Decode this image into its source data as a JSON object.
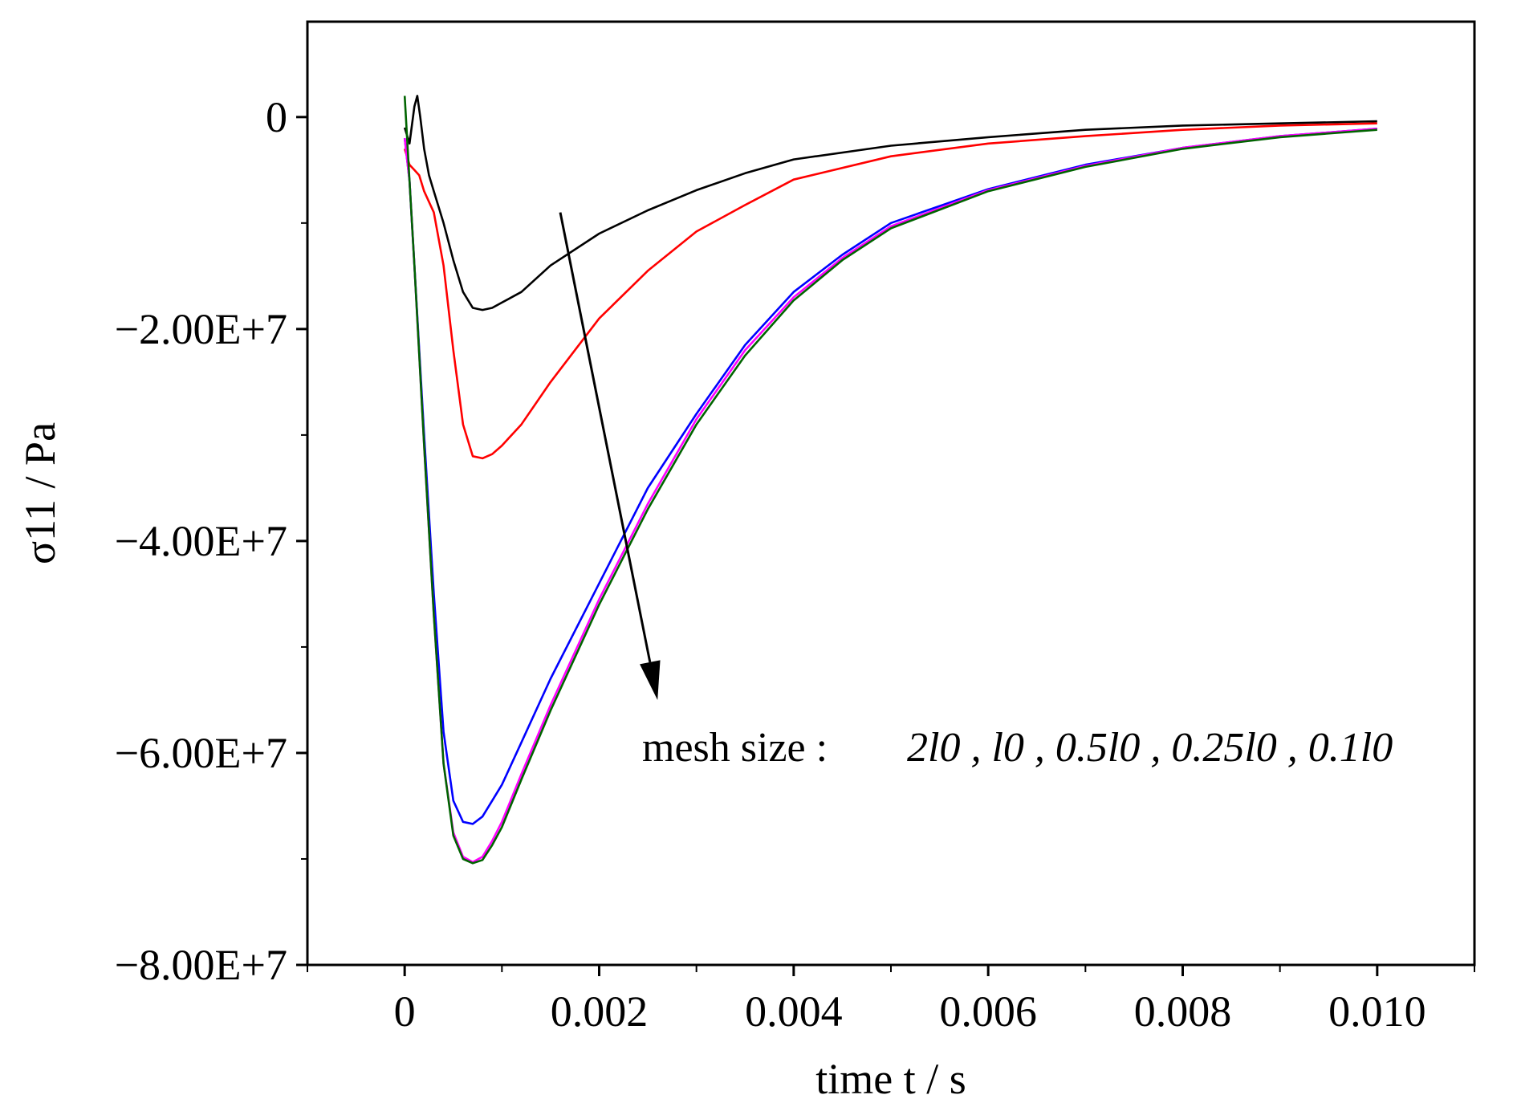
{
  "chart_data": {
    "type": "line",
    "xlabel": "time t / s",
    "ylabel": "σ11 / Pa",
    "xlim": [
      -0.001,
      0.011
    ],
    "ylim": [
      -80000000,
      9000000
    ],
    "x_ticks": [
      0,
      0.002,
      0.004,
      0.006,
      0.008,
      0.01
    ],
    "x_tick_labels": [
      "0",
      "0.002",
      "0.004",
      "0.006",
      "0.008",
      "0.010"
    ],
    "y_ticks": [
      0,
      -20000000,
      -40000000,
      -60000000,
      -80000000
    ],
    "y_tick_labels": [
      "0",
      "−2.00E+7",
      "−4.00E+7",
      "−6.00E+7",
      "−8.00E+7"
    ],
    "annotation": {
      "text_prefix": "mesh size :",
      "text_values": "2l0 , l0 , 0.5l0 , 0.25l0 , 0.1l0",
      "arrow_from": [
        0.0016,
        -9000000
      ],
      "arrow_to": [
        0.0026,
        -55000000
      ]
    },
    "series": [
      {
        "color": "#000000",
        "x": [
          0,
          5e-05,
          0.0001,
          0.00013,
          0.00016,
          0.0002,
          0.00025,
          0.0003,
          0.0004,
          0.0005,
          0.0006,
          0.0007,
          0.0008,
          0.0009,
          0.001,
          0.0012,
          0.0015,
          0.002,
          0.0025,
          0.003,
          0.0035,
          0.004,
          0.005,
          0.006,
          0.007,
          0.008,
          0.009,
          0.01
        ],
        "y": [
          -1000000,
          -2500000,
          1000000,
          2000000,
          0,
          -3000000,
          -5500000,
          -7000000,
          -10000000,
          -13500000,
          -16500000,
          -18000000,
          -18200000,
          -18000000,
          -17500000,
          -16500000,
          -14000000,
          -11000000,
          -8800000,
          -6900000,
          -5300000,
          -4000000,
          -2700000,
          -1900000,
          -1200000,
          -800000,
          -600000,
          -400000
        ]
      },
      {
        "color": "#ff0000",
        "x": [
          0,
          5e-05,
          0.0001,
          0.00015,
          0.0002,
          0.0003,
          0.0004,
          0.0005,
          0.0006,
          0.0007,
          0.0008,
          0.0009,
          0.001,
          0.0012,
          0.0015,
          0.002,
          0.0025,
          0.003,
          0.0035,
          0.004,
          0.005,
          0.006,
          0.007,
          0.008,
          0.009,
          0.01
        ],
        "y": [
          -3000000,
          -4500000,
          -5000000,
          -5500000,
          -7000000,
          -9000000,
          -14000000,
          -22000000,
          -29000000,
          -32000000,
          -32200000,
          -31800000,
          -31000000,
          -29000000,
          -25000000,
          -19000000,
          -14500000,
          -10800000,
          -8300000,
          -5900000,
          -3700000,
          -2500000,
          -1800000,
          -1200000,
          -800000,
          -600000
        ]
      },
      {
        "color": "#0000ff",
        "x": [
          0,
          5e-05,
          0.0001,
          0.0002,
          0.0003,
          0.0004,
          0.0005,
          0.0006,
          0.0007,
          0.0008,
          0.0009,
          0.001,
          0.0012,
          0.0015,
          0.002,
          0.0025,
          0.003,
          0.0035,
          0.004,
          0.0045,
          0.005,
          0.006,
          0.007,
          0.008,
          0.009,
          0.01
        ],
        "y": [
          -2000000,
          -6000000,
          -14000000,
          -30000000,
          -45000000,
          -58000000,
          -64500000,
          -66500000,
          -66700000,
          -66000000,
          -64500000,
          -63000000,
          -59000000,
          -53000000,
          -44000000,
          -35000000,
          -28000000,
          -21500000,
          -16500000,
          -13000000,
          -10000000,
          -6800000,
          -4500000,
          -2900000,
          -1800000,
          -1100000
        ]
      },
      {
        "color": "#ff00ff",
        "x": [
          0,
          5e-05,
          0.0001,
          0.0002,
          0.0003,
          0.0004,
          0.0005,
          0.0006,
          0.0007,
          0.0008,
          0.0009,
          0.001,
          0.0012,
          0.0015,
          0.002,
          0.0025,
          0.003,
          0.0035,
          0.004,
          0.0045,
          0.005,
          0.006,
          0.007,
          0.008,
          0.009,
          0.01
        ],
        "y": [
          -2000000,
          -6000000,
          -14000000,
          -31000000,
          -47000000,
          -61000000,
          -67500000,
          -69800000,
          -70300000,
          -69800000,
          -68300000,
          -66500000,
          -62000000,
          -55500000,
          -45500000,
          -36500000,
          -28500000,
          -22000000,
          -17000000,
          -13300000,
          -10300000,
          -6900000,
          -4600000,
          -2900000,
          -1800000,
          -1100000
        ]
      },
      {
        "color": "#006400",
        "x": [
          0,
          5e-05,
          0.0001,
          0.0002,
          0.0003,
          0.0004,
          0.0005,
          0.0006,
          0.0007,
          0.0008,
          0.0009,
          0.001,
          0.0012,
          0.0015,
          0.002,
          0.0025,
          0.003,
          0.0035,
          0.004,
          0.0045,
          0.005,
          0.006,
          0.007,
          0.008,
          0.009,
          0.01
        ],
        "y": [
          2000000,
          -6000000,
          -14000000,
          -31000000,
          -47000000,
          -61000000,
          -67800000,
          -70000000,
          -70400000,
          -70100000,
          -68700000,
          -67000000,
          -62500000,
          -56000000,
          -46000000,
          -37000000,
          -29000000,
          -22500000,
          -17300000,
          -13500000,
          -10500000,
          -7000000,
          -4700000,
          -3000000,
          -1900000,
          -1200000
        ]
      }
    ]
  }
}
